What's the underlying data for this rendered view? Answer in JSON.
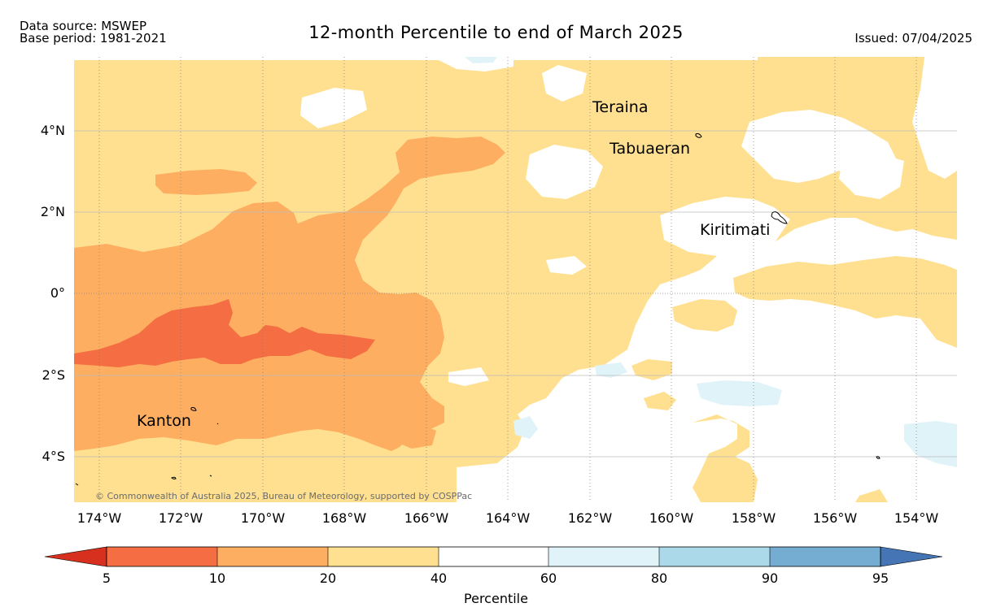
{
  "header": {
    "source": "Data source: MSWEP",
    "base_period": "Base period: 1981-2021",
    "title": "12-month Percentile to end of March 2025",
    "issued": "Issued: 07/04/2025"
  },
  "map": {
    "lat_labels": [
      "4°N",
      "2°N",
      "0°",
      "2°S",
      "4°S"
    ],
    "lon_labels": [
      "174°W",
      "172°W",
      "170°W",
      "168°W",
      "166°W",
      "164°W",
      "162°W",
      "160°W",
      "158°W",
      "156°W",
      "154°W"
    ],
    "places": {
      "teraina": "Teraina",
      "tabuaeran": "Tabuaeran",
      "kiritimati": "Kiritimati",
      "kanton": "Kanton"
    },
    "copyright": "© Commonwealth of Australia 2025, Bureau of Meteorology, supported by COSPPac",
    "colors": {
      "below_5": "#d7301f",
      "p5_10": "#f46d43",
      "p10_20": "#fdae61",
      "p20_40": "#fee090",
      "p40_60": "#ffffff",
      "p60_80": "#e0f3f8",
      "p80_90": "#abd9e9",
      "p90_95": "#74add1",
      "above_95": "#4575b4"
    }
  },
  "colorbar": {
    "ticks": [
      "5",
      "10",
      "20",
      "40",
      "60",
      "80",
      "90",
      "95"
    ],
    "label": "Percentile"
  }
}
